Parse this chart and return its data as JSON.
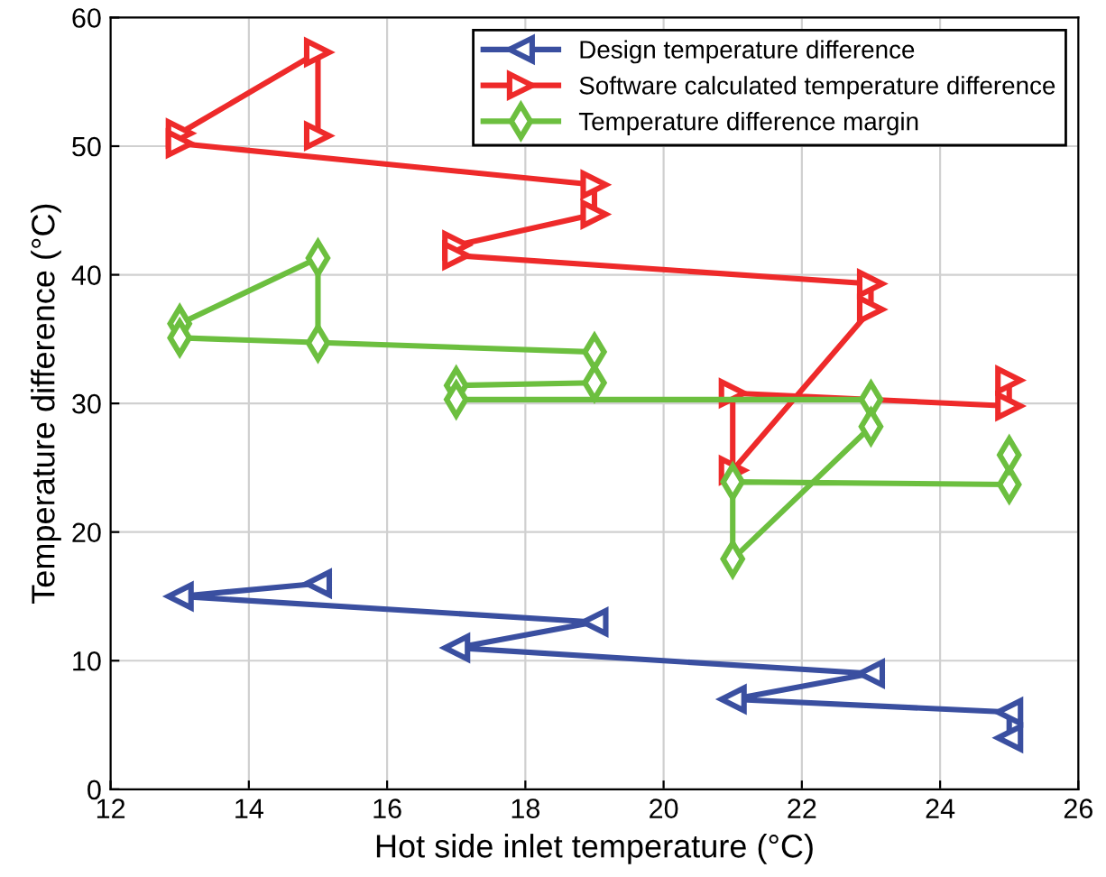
{
  "chart_data": {
    "type": "line",
    "xlabel": "Hot side inlet temperature (°C)",
    "ylabel": "Temperature difference (°C)",
    "xlim": [
      12,
      26
    ],
    "xticks": [
      12,
      14,
      16,
      18,
      20,
      22,
      24,
      26
    ],
    "ylim": [
      0,
      60
    ],
    "yticks": [
      0,
      10,
      20,
      30,
      40,
      50,
      60
    ],
    "grid": true,
    "legend": "top right",
    "line_style": "solid",
    "series": [
      {
        "name": "Design temperature difference",
        "color": "#3a4fa0",
        "marker": "triangle-left",
        "x": [
          15,
          13,
          19,
          17,
          23,
          21,
          25,
          25
        ],
        "values": [
          16,
          15,
          13,
          11,
          9,
          7,
          6,
          4
        ]
      },
      {
        "name": "Software calculated temperature difference",
        "color": "#ee2a2a",
        "marker": "triangle-right",
        "x": [
          15,
          15,
          13,
          13,
          19,
          19,
          17,
          17,
          23,
          23,
          21,
          21,
          25,
          25
        ],
        "values": [
          50.8,
          57.3,
          51,
          50.2,
          47,
          44.7,
          42.3,
          41.5,
          39.3,
          37.3,
          24.8,
          30.8,
          29.8,
          31.8
        ]
      },
      {
        "name": "Temperature difference margin",
        "color": "#6cbf3f",
        "marker": "diamond",
        "x": [
          15,
          15,
          13,
          13,
          19,
          19,
          17,
          17,
          23,
          23,
          21,
          21,
          25,
          25
        ],
        "values": [
          34.7,
          41.3,
          36.2,
          35.1,
          34,
          31.6,
          31.4,
          30.3,
          30.3,
          28.2,
          17.9,
          23.9,
          23.7,
          26
        ]
      }
    ]
  }
}
